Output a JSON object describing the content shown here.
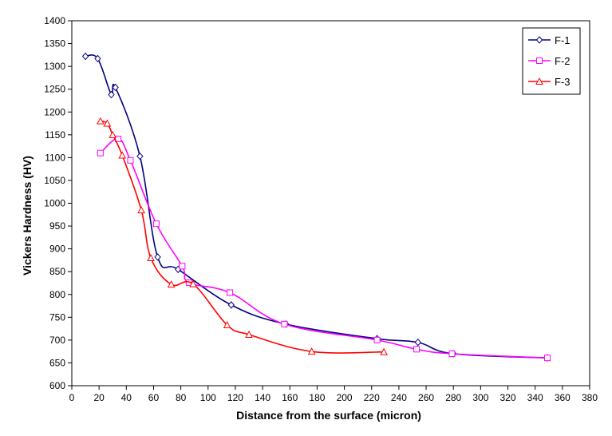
{
  "chart_data": {
    "type": "line",
    "title": "",
    "xlabel": "Distance from the surface (micron)",
    "ylabel": "Vickers Hardness (HV)",
    "xlim": [
      0,
      380
    ],
    "ylim": [
      600,
      1400
    ],
    "xticks": [
      0,
      20,
      40,
      60,
      80,
      100,
      120,
      140,
      160,
      180,
      200,
      220,
      240,
      260,
      280,
      300,
      320,
      340,
      360,
      380
    ],
    "yticks": [
      600,
      650,
      700,
      750,
      800,
      850,
      900,
      950,
      1000,
      1050,
      1100,
      1150,
      1200,
      1250,
      1300,
      1350,
      1400
    ],
    "grid": false,
    "legend_position": "top-right",
    "series": [
      {
        "name": "F-1",
        "color": "#000080",
        "marker": "diamond",
        "points": [
          [
            10,
            1322
          ],
          [
            19,
            1317
          ],
          [
            29,
            1238
          ],
          [
            32,
            1254
          ],
          [
            50,
            1103
          ],
          [
            63,
            882
          ],
          [
            78,
            855
          ],
          [
            117,
            777
          ],
          [
            157,
            735
          ],
          [
            224,
            703
          ],
          [
            254,
            695
          ],
          [
            280,
            670
          ],
          [
            349,
            661
          ]
        ]
      },
      {
        "name": "F-2",
        "color": "#ff00ff",
        "marker": "square",
        "points": [
          [
            21,
            1110
          ],
          [
            34,
            1141
          ],
          [
            43,
            1094
          ],
          [
            62,
            955
          ],
          [
            81,
            862
          ],
          [
            86,
            826
          ],
          [
            116,
            804
          ],
          [
            156,
            735
          ],
          [
            224,
            700
          ],
          [
            253,
            680
          ],
          [
            279,
            670
          ],
          [
            349,
            661
          ]
        ]
      },
      {
        "name": "F-3",
        "color": "#ff0000",
        "marker": "triangle",
        "points": [
          [
            21,
            1180
          ],
          [
            26,
            1175
          ],
          [
            30,
            1150
          ],
          [
            37,
            1105
          ],
          [
            51,
            985
          ],
          [
            58,
            880
          ],
          [
            73,
            822
          ],
          [
            89,
            823
          ],
          [
            114,
            733
          ],
          [
            130,
            712
          ],
          [
            176,
            675
          ],
          [
            229,
            674
          ]
        ]
      }
    ]
  }
}
